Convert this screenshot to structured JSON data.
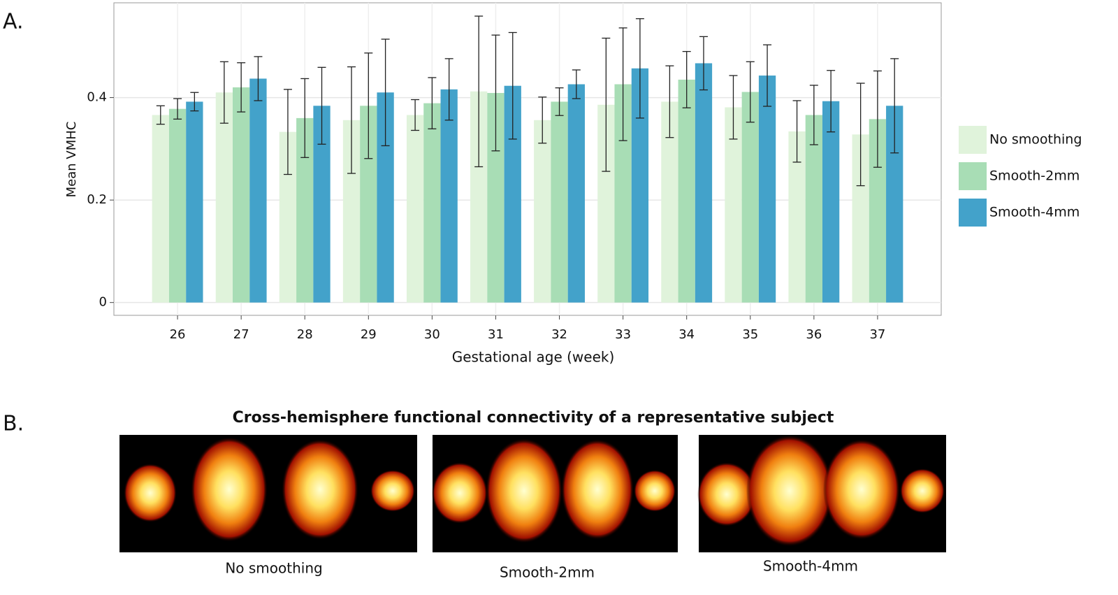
{
  "chart_data": {
    "type": "bar",
    "y_label": "Mean VMHC",
    "x_label": "Gestational age (week)",
    "categories": [
      "26",
      "27",
      "28",
      "29",
      "30",
      "31",
      "32",
      "33",
      "34",
      "35",
      "36",
      "37"
    ],
    "series": [
      {
        "name": "No smoothing",
        "color": "#e0f3db",
        "values": [
          0.366,
          0.41,
          0.333,
          0.356,
          0.366,
          0.412,
          0.356,
          0.386,
          0.392,
          0.381,
          0.334,
          0.328
        ],
        "errors": [
          0.018,
          0.06,
          0.083,
          0.104,
          0.03,
          0.147,
          0.045,
          0.13,
          0.07,
          0.062,
          0.06,
          0.1
        ]
      },
      {
        "name": "Smooth-2mm",
        "color": "#a8ddb5",
        "values": [
          0.378,
          0.42,
          0.36,
          0.384,
          0.389,
          0.409,
          0.392,
          0.426,
          0.435,
          0.411,
          0.366,
          0.358
        ],
        "errors": [
          0.02,
          0.048,
          0.077,
          0.103,
          0.05,
          0.113,
          0.027,
          0.11,
          0.055,
          0.059,
          0.058,
          0.094
        ]
      },
      {
        "name": "Smooth-4mm",
        "color": "#43a2ca",
        "values": [
          0.392,
          0.437,
          0.384,
          0.41,
          0.416,
          0.423,
          0.426,
          0.457,
          0.467,
          0.443,
          0.393,
          0.384
        ],
        "errors": [
          0.018,
          0.043,
          0.075,
          0.104,
          0.06,
          0.104,
          0.028,
          0.097,
          0.052,
          0.06,
          0.06,
          0.092
        ]
      }
    ],
    "ylim": [
      -0.025,
      0.585
    ],
    "yticks": [
      0,
      0.2,
      0.4
    ],
    "grid": true,
    "legend": "right"
  },
  "figure": {
    "panel_a": "A.",
    "panel_b": "B.",
    "panel_b_title": "Cross-hemisphere functional connectivity of a representative subject",
    "captions": [
      "No smoothing",
      "Smooth-2mm",
      "Smooth-4mm"
    ]
  }
}
